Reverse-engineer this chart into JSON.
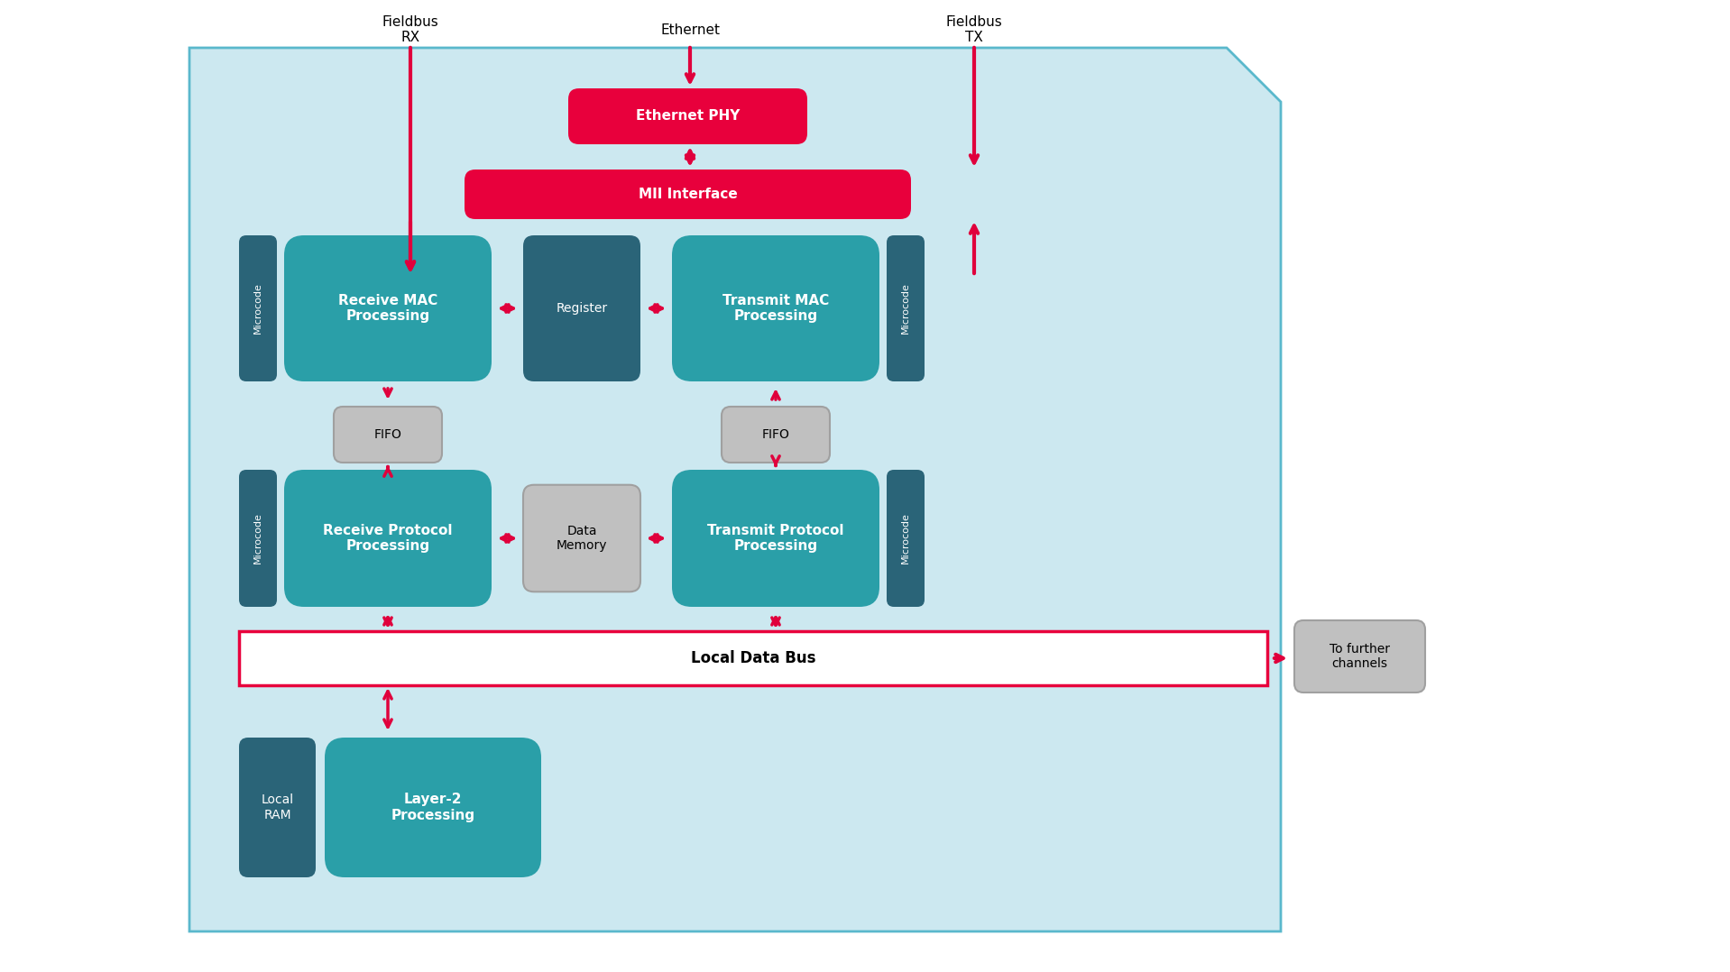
{
  "bg_color": "#ffffff",
  "main_box_color": "#cce8f0",
  "main_box_border": "#5ab8cc",
  "teal_dark": "#2a6478",
  "teal_mid": "#2a9fa8",
  "teal_light": "#2ab8c0",
  "gray_box": "#a0a0a0",
  "gray_light": "#c0c0c0",
  "gray_med": "#b8b8b8",
  "red_box": "#e8003c",
  "arrow_color": "#e0003c",
  "white": "#ffffff",
  "black": "#000000",
  "fieldbus_rx_label": "Fieldbus\nRX",
  "fieldbus_tx_label": "Fieldbus\nTX",
  "ethernet_label": "Ethernet",
  "eth_phy_label": "Ethernet PHY",
  "mii_label": "MII Interface",
  "receive_mac_label": "Receive MAC\nProcessing",
  "transmit_mac_label": "Transmit MAC\nProcessing",
  "register_label": "Register",
  "fifo_left_label": "FIFO",
  "fifo_right_label": "FIFO",
  "receive_proto_label": "Receive Protocol\nProcessing",
  "transmit_proto_label": "Transmit Protocol\nProcessing",
  "data_memory_label": "Data\nMemory",
  "local_data_bus_label": "Local Data Bus",
  "local_ram_label": "Local\nRAM",
  "layer2_label": "Layer-2\nProcessing",
  "microcode_label": "Microcode",
  "to_further_label": "To further\nchannels"
}
